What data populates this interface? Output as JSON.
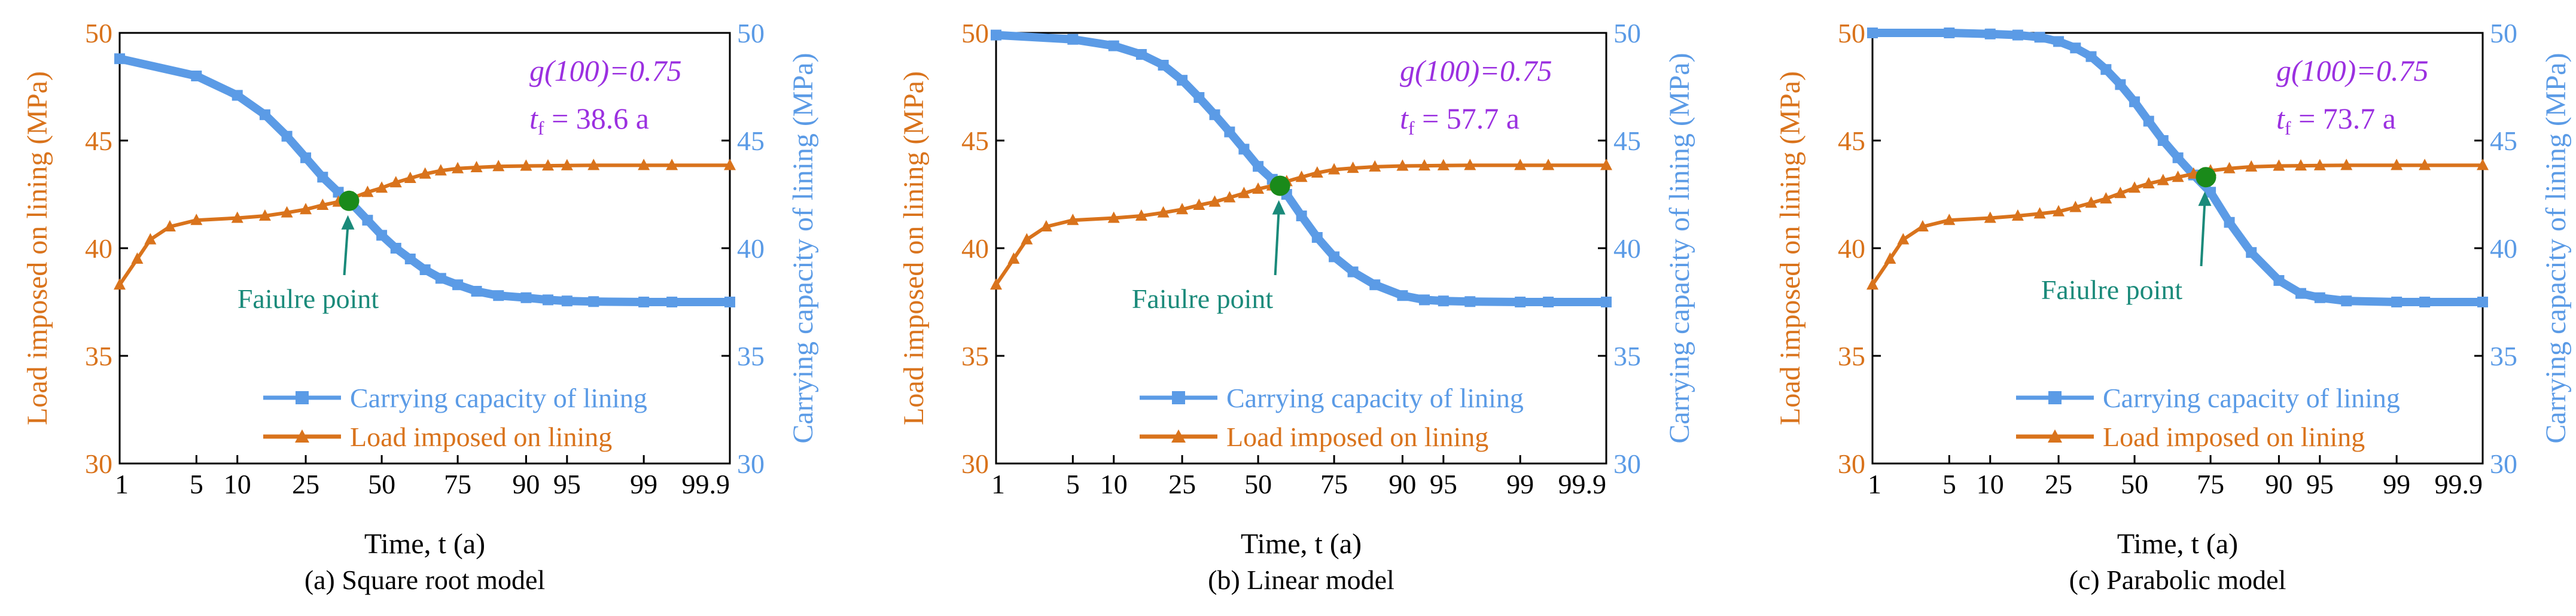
{
  "figure_colors": {
    "load": "#D9731C",
    "capacity": "#5B9BE6",
    "failure": "#1A8A1A",
    "annotation": "#1A8A7A",
    "param_text": "#9B30E0"
  },
  "chart_data": [
    {
      "type": "line",
      "panel": "a",
      "caption": "(a) Square root model",
      "xlabel": "Time, t (a)",
      "ylabel_left": "Load imposed on lining (MPa)",
      "ylabel_right": "Carrying capacity of lining (MPa)",
      "x_tick_labels": [
        "1",
        "5",
        "10",
        "25",
        "50",
        "75",
        "90",
        "95",
        "99",
        "99.9"
      ],
      "x_tick_values": [
        1,
        5,
        10,
        25,
        50,
        75,
        90,
        95,
        99,
        99.9
      ],
      "ylim_left": [
        30,
        50
      ],
      "ylim_right": [
        30,
        50
      ],
      "yticks": [
        "30",
        "35",
        "40",
        "45",
        "50"
      ],
      "legend": [
        "Carrying capacity of lining",
        "Load imposed on lining"
      ],
      "g_label": "g(100)=0.75",
      "tf_symbol": "t",
      "tf_sub": "f",
      "tf_value": " = 38.6 a",
      "annotation": "Faiulre point",
      "failure_point": {
        "t": 38.6,
        "value": 42.2
      },
      "series": [
        {
          "name": "Carrying capacity of lining",
          "axis": "right",
          "x": [
            1,
            5,
            10,
            15,
            20,
            25,
            30,
            35,
            40,
            45,
            50,
            55,
            60,
            65,
            70,
            75,
            80,
            85,
            90,
            93,
            95,
            97,
            99,
            99.5,
            99.9
          ],
          "y": [
            48.8,
            48.0,
            47.1,
            46.2,
            45.2,
            44.2,
            43.3,
            42.6,
            42.0,
            41.3,
            40.6,
            40.0,
            39.5,
            39.0,
            38.6,
            38.3,
            38.0,
            37.8,
            37.7,
            37.6,
            37.55,
            37.52,
            37.5,
            37.5,
            37.5
          ]
        },
        {
          "name": "Load imposed on lining",
          "axis": "left",
          "x": [
            1,
            1.5,
            2,
            3,
            5,
            10,
            15,
            20,
            25,
            30,
            35,
            40,
            45,
            50,
            55,
            60,
            65,
            70,
            75,
            80,
            85,
            90,
            93,
            95,
            97,
            99,
            99.5,
            99.9
          ],
          "y": [
            38.3,
            39.5,
            40.4,
            41.0,
            41.3,
            41.4,
            41.5,
            41.65,
            41.8,
            42.0,
            42.15,
            42.35,
            42.6,
            42.8,
            43.05,
            43.25,
            43.45,
            43.6,
            43.7,
            43.75,
            43.8,
            43.82,
            43.83,
            43.84,
            43.85,
            43.85,
            43.85,
            43.85
          ]
        }
      ]
    },
    {
      "type": "line",
      "panel": "b",
      "caption": "(b) Linear model",
      "xlabel": "Time, t (a)",
      "ylabel_left": "Load imposed on lining (MPa)",
      "ylabel_right": "Carrying capacity of lining (MPa)",
      "x_tick_labels": [
        "1",
        "5",
        "10",
        "25",
        "50",
        "75",
        "90",
        "95",
        "99",
        "99.9"
      ],
      "x_tick_values": [
        1,
        5,
        10,
        25,
        50,
        75,
        90,
        95,
        99,
        99.9
      ],
      "ylim_left": [
        30,
        50
      ],
      "ylim_right": [
        30,
        50
      ],
      "yticks": [
        "30",
        "35",
        "40",
        "45",
        "50"
      ],
      "legend": [
        "Carrying capacity of lining",
        "Load imposed on lining"
      ],
      "g_label": "g(100)=0.75",
      "tf_symbol": "t",
      "tf_sub": "f",
      "tf_value": " = 57.7 a",
      "annotation": "Faiulre point",
      "failure_point": {
        "t": 57.7,
        "value": 42.9
      },
      "series": [
        {
          "name": "Carrying capacity of lining",
          "axis": "right",
          "x": [
            1,
            5,
            10,
            15,
            20,
            25,
            30,
            35,
            40,
            45,
            50,
            55,
            60,
            65,
            70,
            75,
            80,
            85,
            90,
            93,
            95,
            97,
            99,
            99.5,
            99.9
          ],
          "y": [
            49.9,
            49.7,
            49.4,
            49.0,
            48.5,
            47.8,
            47.0,
            46.2,
            45.4,
            44.6,
            43.8,
            43.2,
            42.5,
            41.5,
            40.5,
            39.6,
            38.9,
            38.3,
            37.8,
            37.6,
            37.55,
            37.52,
            37.5,
            37.5,
            37.5
          ]
        },
        {
          "name": "Load imposed on lining",
          "axis": "left",
          "x": [
            1,
            1.5,
            2,
            3,
            5,
            10,
            15,
            20,
            25,
            30,
            35,
            40,
            45,
            50,
            55,
            60,
            65,
            70,
            75,
            80,
            85,
            90,
            93,
            95,
            97,
            99,
            99.5,
            99.9
          ],
          "y": [
            38.3,
            39.5,
            40.4,
            41.0,
            41.3,
            41.4,
            41.5,
            41.65,
            41.8,
            42.0,
            42.15,
            42.35,
            42.55,
            42.75,
            42.9,
            43.1,
            43.3,
            43.5,
            43.65,
            43.72,
            43.78,
            43.82,
            43.83,
            43.84,
            43.85,
            43.85,
            43.85,
            43.85
          ]
        }
      ]
    },
    {
      "type": "line",
      "panel": "c",
      "caption": "(c) Parabolic model",
      "xlabel": "Time, t (a)",
      "ylabel_left": "Load imposed on lining (MPa)",
      "ylabel_right": "Carrying capacity of lining (MPa)",
      "x_tick_labels": [
        "1",
        "5",
        "10",
        "25",
        "50",
        "75",
        "90",
        "95",
        "99",
        "99.9"
      ],
      "x_tick_values": [
        1,
        5,
        10,
        25,
        50,
        75,
        90,
        95,
        99,
        99.9
      ],
      "ylim_left": [
        30,
        50
      ],
      "ylim_right": [
        30,
        50
      ],
      "yticks": [
        "30",
        "35",
        "40",
        "45",
        "50"
      ],
      "legend": [
        "Carrying capacity of lining",
        "Load imposed on lining"
      ],
      "g_label": "g(100)=0.75",
      "tf_symbol": "t",
      "tf_sub": "f",
      "tf_value": " = 73.7 a",
      "annotation": "Faiulre point",
      "failure_point": {
        "t": 73.7,
        "value": 43.3
      },
      "series": [
        {
          "name": "Carrying capacity of lining",
          "axis": "right",
          "x": [
            1,
            5,
            10,
            15,
            20,
            25,
            30,
            35,
            40,
            45,
            50,
            55,
            60,
            65,
            70,
            75,
            80,
            85,
            90,
            93,
            95,
            97,
            99,
            99.5,
            99.9
          ],
          "y": [
            50.0,
            50.0,
            49.95,
            49.9,
            49.8,
            49.6,
            49.3,
            48.9,
            48.3,
            47.6,
            46.8,
            45.9,
            45.0,
            44.2,
            43.4,
            42.6,
            41.2,
            39.8,
            38.5,
            37.9,
            37.7,
            37.55,
            37.5,
            37.5,
            37.5
          ]
        },
        {
          "name": "Load imposed on lining",
          "axis": "left",
          "x": [
            1,
            1.5,
            2,
            3,
            5,
            10,
            15,
            20,
            25,
            30,
            35,
            40,
            45,
            50,
            55,
            60,
            65,
            70,
            75,
            80,
            85,
            90,
            93,
            95,
            97,
            99,
            99.5,
            99.9
          ],
          "y": [
            38.3,
            39.5,
            40.4,
            41.0,
            41.3,
            41.4,
            41.5,
            41.6,
            41.7,
            41.9,
            42.1,
            42.3,
            42.55,
            42.8,
            43.0,
            43.15,
            43.3,
            43.45,
            43.6,
            43.7,
            43.78,
            43.82,
            43.83,
            43.84,
            43.85,
            43.85,
            43.85,
            43.85
          ]
        }
      ]
    }
  ]
}
